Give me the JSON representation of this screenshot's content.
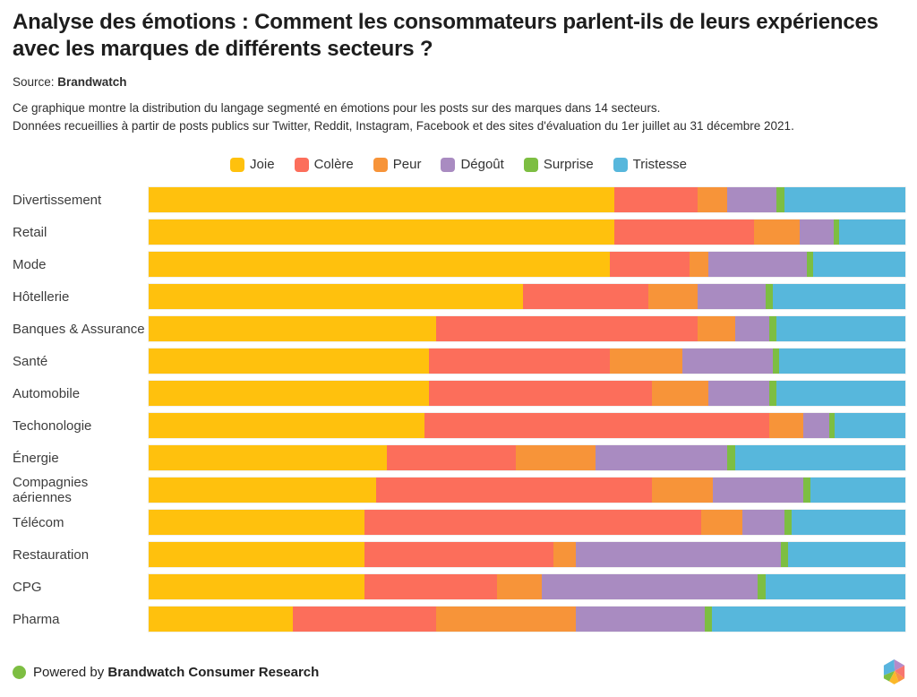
{
  "header": {
    "title": "Analyse des émotions : Comment les consommateurs parlent-ils de leurs expériences avec les marques de différents secteurs ?",
    "source_label": "Source: ",
    "source_value": "Brandwatch",
    "description_line1": "Ce graphique montre la distribution du langage segmenté en émotions pour les posts sur des marques dans 14 secteurs.",
    "description_line2": "Données recueillies à partir de posts publics sur Twitter, Reddit, Instagram, Facebook et des sites d'évaluation du 1er juillet au 31 décembre 2021."
  },
  "colors": {
    "joie": "#FFC10D",
    "colere": "#FC6E5B",
    "peur": "#F79439",
    "degout": "#A98BC1",
    "surprise": "#7DBE42",
    "tristesse": "#57B7DC",
    "footer_dot": "#7DBE42"
  },
  "legend": [
    {
      "label": "Joie",
      "color": "#FFC10D"
    },
    {
      "label": "Colère",
      "color": "#FC6E5B"
    },
    {
      "label": "Peur",
      "color": "#F79439"
    },
    {
      "label": "Dégoût",
      "color": "#A98BC1"
    },
    {
      "label": "Surprise",
      "color": "#7DBE42"
    },
    {
      "label": "Tristesse",
      "color": "#57B7DC"
    }
  ],
  "chart_data": {
    "type": "bar",
    "stacked": true,
    "orientation": "horizontal",
    "unit": "percent",
    "xlim": [
      0,
      100
    ],
    "grid": false,
    "legend_position": "top-center",
    "categories": [
      "Divertissement",
      "Retail",
      "Mode",
      "Hôtellerie",
      "Banques & Assurance",
      "Santé",
      "Automobile",
      "Techonologie",
      "Énergie",
      "Compagnies aériennes",
      "Télécom",
      "Restauration",
      "CPG",
      "Pharma"
    ],
    "series": [
      {
        "name": "Joie",
        "color": "#FFC10D",
        "values": [
          61.5,
          61.5,
          61.0,
          49.5,
          38.0,
          37.0,
          37.0,
          36.5,
          31.5,
          30.0,
          28.5,
          28.5,
          28.5,
          19.0
        ]
      },
      {
        "name": "Colère",
        "color": "#FC6E5B",
        "values": [
          11.0,
          18.5,
          10.5,
          16.5,
          34.5,
          24.0,
          29.5,
          45.5,
          17.0,
          36.5,
          44.5,
          25.0,
          17.5,
          19.0
        ]
      },
      {
        "name": "Peur",
        "color": "#F79439",
        "values": [
          4.0,
          6.0,
          2.5,
          6.5,
          5.0,
          9.5,
          7.5,
          4.5,
          10.5,
          8.0,
          5.5,
          3.0,
          6.0,
          18.5
        ]
      },
      {
        "name": "Dégoût",
        "color": "#A98BC1",
        "values": [
          6.5,
          4.5,
          13.0,
          9.0,
          4.5,
          12.0,
          8.0,
          3.5,
          17.5,
          12.0,
          5.5,
          27.0,
          28.5,
          17.0
        ]
      },
      {
        "name": "Surprise",
        "color": "#7DBE42",
        "values": [
          1.0,
          0.7,
          0.8,
          1.0,
          1.0,
          0.8,
          1.0,
          0.7,
          1.0,
          1.0,
          1.0,
          1.0,
          1.0,
          1.0
        ]
      },
      {
        "name": "Tristesse",
        "color": "#57B7DC",
        "values": [
          16.0,
          8.8,
          12.2,
          17.5,
          17.0,
          16.7,
          17.0,
          9.3,
          22.5,
          12.5,
          15.0,
          15.5,
          18.5,
          25.5
        ]
      }
    ]
  },
  "footer": {
    "powered_prefix": "Powered by ",
    "powered_brand": "Brandwatch Consumer Research"
  }
}
